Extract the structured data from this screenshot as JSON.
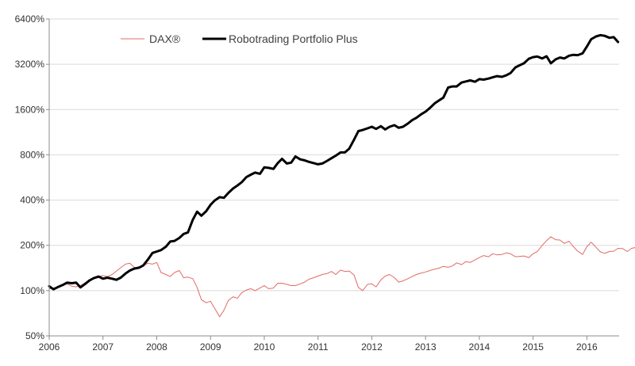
{
  "chart_data": {
    "type": "line",
    "title": "",
    "xlabel": "",
    "ylabel": "",
    "y_scale": "log2",
    "ylim": [
      50,
      6400
    ],
    "xlim": [
      2006,
      2016.6
    ],
    "grid": "horizontal",
    "legend_position": "top-left",
    "x_ticks": [
      {
        "value": 2006,
        "label": "2006"
      },
      {
        "value": 2007,
        "label": "2007"
      },
      {
        "value": 2008,
        "label": "2008"
      },
      {
        "value": 2009,
        "label": "2009"
      },
      {
        "value": 2010,
        "label": "2010"
      },
      {
        "value": 2011,
        "label": "2011"
      },
      {
        "value": 2012,
        "label": "2012"
      },
      {
        "value": 2013,
        "label": "2013"
      },
      {
        "value": 2014,
        "label": "2014"
      },
      {
        "value": 2015,
        "label": "2015"
      },
      {
        "value": 2016,
        "label": "2016"
      }
    ],
    "y_ticks": [
      {
        "value": 50,
        "label": "50%"
      },
      {
        "value": 100,
        "label": "100%"
      },
      {
        "value": 200,
        "label": "200%"
      },
      {
        "value": 400,
        "label": "400%"
      },
      {
        "value": 800,
        "label": "800%"
      },
      {
        "value": 1600,
        "label": "1600%"
      },
      {
        "value": 3200,
        "label": "3200%"
      },
      {
        "value": 6400,
        "label": "6400%"
      }
    ],
    "series": [
      {
        "name": "DAX®",
        "color": "#e06b65",
        "line": "thin",
        "points": [
          [
            2006.0,
            103
          ],
          [
            2006.08,
            104
          ],
          [
            2006.17,
            106
          ],
          [
            2006.25,
            108
          ],
          [
            2006.33,
            111
          ],
          [
            2006.42,
            107
          ],
          [
            2006.5,
            106
          ],
          [
            2006.58,
            108
          ],
          [
            2006.67,
            113
          ],
          [
            2006.75,
            117
          ],
          [
            2006.83,
            121
          ],
          [
            2006.92,
            124
          ],
          [
            2007.0,
            126
          ],
          [
            2007.08,
            124
          ],
          [
            2007.17,
            128
          ],
          [
            2007.25,
            135
          ],
          [
            2007.33,
            142
          ],
          [
            2007.42,
            150
          ],
          [
            2007.5,
            152
          ],
          [
            2007.58,
            143
          ],
          [
            2007.67,
            140
          ],
          [
            2007.75,
            146
          ],
          [
            2007.83,
            152
          ],
          [
            2007.92,
            150
          ],
          [
            2008.0,
            154
          ],
          [
            2008.08,
            132
          ],
          [
            2008.17,
            128
          ],
          [
            2008.25,
            124
          ],
          [
            2008.33,
            132
          ],
          [
            2008.42,
            136
          ],
          [
            2008.5,
            122
          ],
          [
            2008.58,
            123
          ],
          [
            2008.67,
            120
          ],
          [
            2008.75,
            105
          ],
          [
            2008.83,
            87
          ],
          [
            2008.92,
            83
          ],
          [
            2009.0,
            85
          ],
          [
            2009.08,
            76
          ],
          [
            2009.17,
            67
          ],
          [
            2009.25,
            74
          ],
          [
            2009.33,
            86
          ],
          [
            2009.42,
            91
          ],
          [
            2009.5,
            89
          ],
          [
            2009.58,
            97
          ],
          [
            2009.67,
            101
          ],
          [
            2009.75,
            103
          ],
          [
            2009.83,
            100
          ],
          [
            2009.92,
            104
          ],
          [
            2010.0,
            108
          ],
          [
            2010.08,
            103
          ],
          [
            2010.17,
            104
          ],
          [
            2010.25,
            112
          ],
          [
            2010.33,
            112
          ],
          [
            2010.42,
            110
          ],
          [
            2010.5,
            108
          ],
          [
            2010.58,
            108
          ],
          [
            2010.67,
            111
          ],
          [
            2010.75,
            114
          ],
          [
            2010.83,
            119
          ],
          [
            2010.92,
            122
          ],
          [
            2011.0,
            125
          ],
          [
            2011.08,
            128
          ],
          [
            2011.17,
            130
          ],
          [
            2011.25,
            134
          ],
          [
            2011.33,
            128
          ],
          [
            2011.42,
            137
          ],
          [
            2011.5,
            134
          ],
          [
            2011.58,
            135
          ],
          [
            2011.67,
            127
          ],
          [
            2011.75,
            105
          ],
          [
            2011.83,
            100
          ],
          [
            2011.92,
            110
          ],
          [
            2012.0,
            111
          ],
          [
            2012.08,
            106
          ],
          [
            2012.17,
            118
          ],
          [
            2012.25,
            125
          ],
          [
            2012.33,
            128
          ],
          [
            2012.42,
            122
          ],
          [
            2012.5,
            114
          ],
          [
            2012.58,
            116
          ],
          [
            2012.67,
            120
          ],
          [
            2012.75,
            124
          ],
          [
            2012.83,
            128
          ],
          [
            2012.92,
            131
          ],
          [
            2013.0,
            133
          ],
          [
            2013.08,
            136
          ],
          [
            2013.17,
            139
          ],
          [
            2013.25,
            141
          ],
          [
            2013.33,
            145
          ],
          [
            2013.42,
            143
          ],
          [
            2013.5,
            146
          ],
          [
            2013.58,
            153
          ],
          [
            2013.67,
            149
          ],
          [
            2013.75,
            156
          ],
          [
            2013.83,
            154
          ],
          [
            2013.92,
            160
          ],
          [
            2014.0,
            166
          ],
          [
            2014.08,
            171
          ],
          [
            2014.17,
            168
          ],
          [
            2014.25,
            176
          ],
          [
            2014.33,
            173
          ],
          [
            2014.42,
            174
          ],
          [
            2014.5,
            178
          ],
          [
            2014.58,
            176
          ],
          [
            2014.67,
            168
          ],
          [
            2014.75,
            169
          ],
          [
            2014.83,
            170
          ],
          [
            2014.92,
            166
          ],
          [
            2015.0,
            176
          ],
          [
            2015.08,
            182
          ],
          [
            2015.17,
            200
          ],
          [
            2015.25,
            215
          ],
          [
            2015.33,
            228
          ],
          [
            2015.42,
            218
          ],
          [
            2015.5,
            217
          ],
          [
            2015.58,
            206
          ],
          [
            2015.67,
            213
          ],
          [
            2015.75,
            196
          ],
          [
            2015.83,
            183
          ],
          [
            2015.92,
            174
          ],
          [
            2016.0,
            196
          ],
          [
            2016.08,
            210
          ],
          [
            2016.17,
            194
          ],
          [
            2016.25,
            181
          ],
          [
            2016.33,
            177
          ],
          [
            2016.42,
            182
          ],
          [
            2016.5,
            183
          ],
          [
            2016.58,
            191
          ],
          [
            2016.67,
            190
          ],
          [
            2016.75,
            182
          ],
          [
            2016.83,
            191
          ],
          [
            2016.92,
            194
          ]
        ]
      },
      {
        "name": "Robotrading Portfolio Plus",
        "color": "#000000",
        "line": "thick",
        "points": [
          [
            2006.0,
            107
          ],
          [
            2006.08,
            102
          ],
          [
            2006.17,
            106
          ],
          [
            2006.25,
            109
          ],
          [
            2006.33,
            113
          ],
          [
            2006.42,
            112
          ],
          [
            2006.5,
            113
          ],
          [
            2006.58,
            105
          ],
          [
            2006.67,
            111
          ],
          [
            2006.75,
            117
          ],
          [
            2006.83,
            121
          ],
          [
            2006.92,
            124
          ],
          [
            2007.0,
            120
          ],
          [
            2007.08,
            122
          ],
          [
            2007.17,
            120
          ],
          [
            2007.25,
            118
          ],
          [
            2007.33,
            122
          ],
          [
            2007.42,
            130
          ],
          [
            2007.5,
            136
          ],
          [
            2007.58,
            140
          ],
          [
            2007.67,
            142
          ],
          [
            2007.75,
            147
          ],
          [
            2007.83,
            160
          ],
          [
            2007.92,
            178
          ],
          [
            2008.0,
            182
          ],
          [
            2008.08,
            186
          ],
          [
            2008.17,
            196
          ],
          [
            2008.25,
            212
          ],
          [
            2008.33,
            214
          ],
          [
            2008.42,
            224
          ],
          [
            2008.5,
            238
          ],
          [
            2008.58,
            244
          ],
          [
            2008.67,
            296
          ],
          [
            2008.75,
            335
          ],
          [
            2008.83,
            315
          ],
          [
            2008.92,
            338
          ],
          [
            2009.0,
            372
          ],
          [
            2009.08,
            398
          ],
          [
            2009.17,
            418
          ],
          [
            2009.25,
            414
          ],
          [
            2009.33,
            446
          ],
          [
            2009.42,
            478
          ],
          [
            2009.5,
            500
          ],
          [
            2009.58,
            526
          ],
          [
            2009.67,
            570
          ],
          [
            2009.75,
            590
          ],
          [
            2009.83,
            610
          ],
          [
            2009.92,
            598
          ],
          [
            2010.0,
            660
          ],
          [
            2010.08,
            655
          ],
          [
            2010.17,
            645
          ],
          [
            2010.25,
            705
          ],
          [
            2010.33,
            752
          ],
          [
            2010.42,
            700
          ],
          [
            2010.5,
            710
          ],
          [
            2010.58,
            780
          ],
          [
            2010.67,
            746
          ],
          [
            2010.75,
            735
          ],
          [
            2010.83,
            718
          ],
          [
            2010.92,
            705
          ],
          [
            2011.0,
            692
          ],
          [
            2011.08,
            700
          ],
          [
            2011.17,
            730
          ],
          [
            2011.25,
            760
          ],
          [
            2011.33,
            790
          ],
          [
            2011.42,
            830
          ],
          [
            2011.5,
            830
          ],
          [
            2011.58,
            880
          ],
          [
            2011.67,
            1010
          ],
          [
            2011.75,
            1150
          ],
          [
            2011.83,
            1170
          ],
          [
            2011.92,
            1200
          ],
          [
            2012.0,
            1230
          ],
          [
            2012.08,
            1190
          ],
          [
            2012.17,
            1240
          ],
          [
            2012.25,
            1180
          ],
          [
            2012.33,
            1230
          ],
          [
            2012.42,
            1260
          ],
          [
            2012.5,
            1210
          ],
          [
            2012.58,
            1230
          ],
          [
            2012.67,
            1290
          ],
          [
            2012.75,
            1360
          ],
          [
            2012.83,
            1410
          ],
          [
            2012.92,
            1490
          ],
          [
            2013.0,
            1550
          ],
          [
            2013.08,
            1640
          ],
          [
            2013.17,
            1760
          ],
          [
            2013.25,
            1840
          ],
          [
            2013.33,
            1920
          ],
          [
            2013.42,
            2240
          ],
          [
            2013.5,
            2280
          ],
          [
            2013.58,
            2280
          ],
          [
            2013.67,
            2420
          ],
          [
            2013.75,
            2460
          ],
          [
            2013.83,
            2500
          ],
          [
            2013.92,
            2450
          ],
          [
            2014.0,
            2550
          ],
          [
            2014.08,
            2530
          ],
          [
            2014.17,
            2570
          ],
          [
            2014.25,
            2620
          ],
          [
            2014.33,
            2670
          ],
          [
            2014.42,
            2640
          ],
          [
            2014.5,
            2700
          ],
          [
            2014.58,
            2800
          ],
          [
            2014.67,
            3050
          ],
          [
            2014.75,
            3150
          ],
          [
            2014.83,
            3250
          ],
          [
            2014.92,
            3480
          ],
          [
            2015.0,
            3570
          ],
          [
            2015.08,
            3600
          ],
          [
            2015.17,
            3500
          ],
          [
            2015.25,
            3620
          ],
          [
            2015.33,
            3250
          ],
          [
            2015.42,
            3450
          ],
          [
            2015.5,
            3550
          ],
          [
            2015.58,
            3500
          ],
          [
            2015.67,
            3650
          ],
          [
            2015.75,
            3700
          ],
          [
            2015.83,
            3680
          ],
          [
            2015.92,
            3780
          ],
          [
            2016.0,
            4200
          ],
          [
            2016.08,
            4700
          ],
          [
            2016.17,
            4900
          ],
          [
            2016.25,
            5000
          ],
          [
            2016.33,
            4950
          ],
          [
            2016.42,
            4800
          ],
          [
            2016.5,
            4850
          ],
          [
            2016.58,
            4500
          ]
        ]
      }
    ]
  }
}
